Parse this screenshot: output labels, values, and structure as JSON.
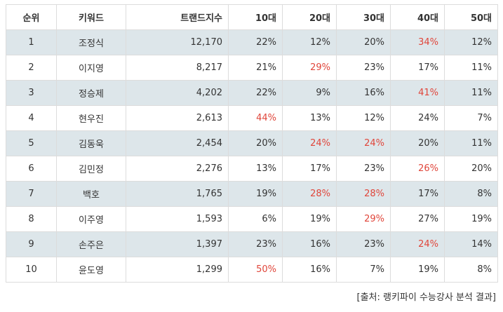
{
  "headers": [
    "순위",
    "키워드",
    "트랜드지수",
    "10대",
    "20대",
    "30대",
    "40대",
    "50대"
  ],
  "rows": [
    {
      "rank": "1",
      "keyword": "조정식",
      "trend": "12,170",
      "ages": [
        "22%",
        "12%",
        "20%",
        "34%",
        "12%"
      ],
      "highlight": [
        3
      ]
    },
    {
      "rank": "2",
      "keyword": "이지영",
      "trend": "8,217",
      "ages": [
        "21%",
        "29%",
        "23%",
        "17%",
        "11%"
      ],
      "highlight": [
        1
      ]
    },
    {
      "rank": "3",
      "keyword": "정승제",
      "trend": "4,202",
      "ages": [
        "22%",
        "9%",
        "16%",
        "41%",
        "11%"
      ],
      "highlight": [
        3
      ]
    },
    {
      "rank": "4",
      "keyword": "현우진",
      "trend": "2,613",
      "ages": [
        "44%",
        "13%",
        "12%",
        "24%",
        "7%"
      ],
      "highlight": [
        0
      ]
    },
    {
      "rank": "5",
      "keyword": "김동욱",
      "trend": "2,454",
      "ages": [
        "20%",
        "24%",
        "24%",
        "20%",
        "11%"
      ],
      "highlight": [
        1,
        2
      ]
    },
    {
      "rank": "6",
      "keyword": "김민정",
      "trend": "2,276",
      "ages": [
        "13%",
        "17%",
        "23%",
        "26%",
        "20%"
      ],
      "highlight": [
        3
      ]
    },
    {
      "rank": "7",
      "keyword": "백호",
      "trend": "1,765",
      "ages": [
        "19%",
        "28%",
        "28%",
        "17%",
        "8%"
      ],
      "highlight": [
        1,
        2
      ]
    },
    {
      "rank": "8",
      "keyword": "이주영",
      "trend": "1,593",
      "ages": [
        "6%",
        "19%",
        "29%",
        "27%",
        "19%"
      ],
      "highlight": [
        2
      ]
    },
    {
      "rank": "9",
      "keyword": "손주은",
      "trend": "1,397",
      "ages": [
        "23%",
        "16%",
        "23%",
        "24%",
        "14%"
      ],
      "highlight": [
        3
      ]
    },
    {
      "rank": "10",
      "keyword": "윤도영",
      "trend": "1,299",
      "ages": [
        "50%",
        "16%",
        "7%",
        "19%",
        "8%"
      ],
      "highlight": [
        0
      ]
    }
  ],
  "source_note": "[출처: 랭키파이 수능강사 분석 결과]",
  "colors": {
    "highlight": "#e0463b",
    "row_band": "#dde6ea",
    "border": "#dcdcdc"
  }
}
